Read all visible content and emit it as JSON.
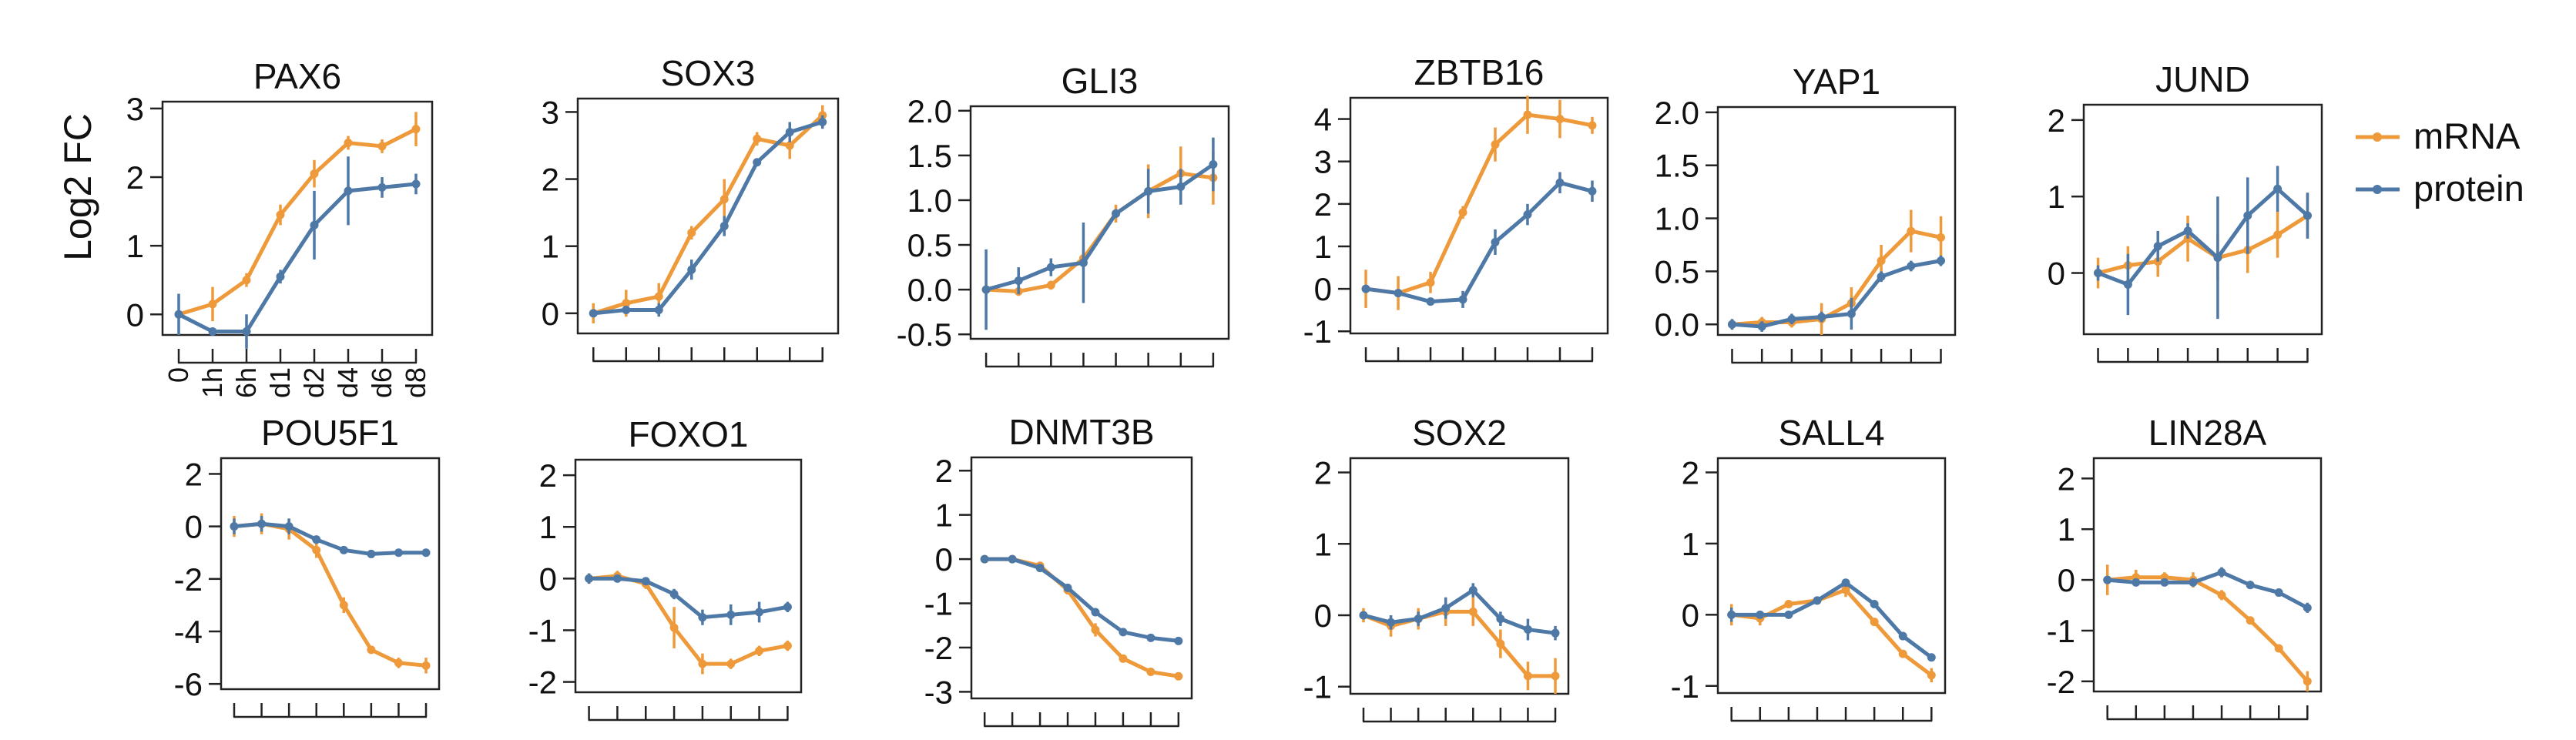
{
  "figure": {
    "ylabel": "Log2 FC",
    "legend": [
      {
        "name": "mRNA",
        "color": "#EE9A3A"
      },
      {
        "name": "protein",
        "color": "#4E79A7"
      }
    ],
    "x_ticks": [
      "0",
      "1h",
      "6h",
      "d1",
      "d2",
      "d4",
      "d6",
      "d8"
    ]
  },
  "chart_data": [
    {
      "type": "line",
      "title": "PAX6",
      "ylim": [
        -0.3,
        3.1
      ],
      "yticks": [
        "0",
        "1",
        "2",
        "3"
      ],
      "categories": [
        "0",
        "1h",
        "6h",
        "d1",
        "d2",
        "d4",
        "d6",
        "d8"
      ],
      "series": [
        {
          "name": "mRNA",
          "values": [
            0,
            0.15,
            0.5,
            1.45,
            2.05,
            2.5,
            2.45,
            2.7
          ],
          "err": [
            0.05,
            0.25,
            0.1,
            0.15,
            0.2,
            0.1,
            0.1,
            0.25
          ]
        },
        {
          "name": "protein",
          "values": [
            0,
            -0.25,
            -0.25,
            0.55,
            1.3,
            1.8,
            1.85,
            1.9
          ],
          "err": [
            0.3,
            0.05,
            0.25,
            0.1,
            0.5,
            0.5,
            0.15,
            0.15
          ]
        }
      ]
    },
    {
      "type": "line",
      "title": "SOX3",
      "ylim": [
        -0.3,
        3.2
      ],
      "yticks": [
        "0",
        "1",
        "2",
        "3"
      ],
      "categories": [
        "0",
        "1h",
        "6h",
        "d1",
        "d2",
        "d4",
        "d6",
        "d8"
      ],
      "series": [
        {
          "name": "mRNA",
          "values": [
            0,
            0.15,
            0.25,
            1.2,
            1.7,
            2.6,
            2.5,
            2.95
          ],
          "err": [
            0.15,
            0.2,
            0.2,
            0.1,
            0.3,
            0.1,
            0.2,
            0.15
          ]
        },
        {
          "name": "protein",
          "values": [
            0,
            0.05,
            0.05,
            0.65,
            1.3,
            2.25,
            2.7,
            2.85
          ],
          "err": [
            0.05,
            0.05,
            0.1,
            0.15,
            0.15,
            0.05,
            0.15,
            0.1
          ]
        }
      ]
    },
    {
      "type": "line",
      "title": "GLI3",
      "ylim": [
        -0.55,
        2.05
      ],
      "yticks": [
        "-0.5",
        "0.0",
        "0.5",
        "1.0",
        "1.5",
        "2.0"
      ],
      "categories": [
        "0",
        "1h",
        "6h",
        "d1",
        "d2",
        "d4",
        "d6",
        "d8"
      ],
      "series": [
        {
          "name": "mRNA",
          "values": [
            0,
            -0.02,
            0.05,
            0.35,
            0.85,
            1.1,
            1.3,
            1.25
          ],
          "err": [
            0.05,
            0.05,
            0.05,
            0.1,
            0.1,
            0.3,
            0.3,
            0.3
          ]
        },
        {
          "name": "protein",
          "values": [
            0,
            0.1,
            0.25,
            0.3,
            0.85,
            1.1,
            1.15,
            1.4
          ],
          "err": [
            0.45,
            0.15,
            0.1,
            0.45,
            0.05,
            0.25,
            0.2,
            0.3
          ]
        }
      ]
    },
    {
      "type": "line",
      "title": "ZBTB16",
      "ylim": [
        -1.05,
        4.5
      ],
      "yticks": [
        "-1",
        "0",
        "1",
        "2",
        "3",
        "4"
      ],
      "categories": [
        "0",
        "1h",
        "6h",
        "d1",
        "d2",
        "d4",
        "d6",
        "d8"
      ],
      "series": [
        {
          "name": "mRNA",
          "values": [
            0,
            -0.1,
            0.15,
            1.8,
            3.4,
            4.1,
            4.0,
            3.85
          ],
          "err": [
            0.45,
            0.4,
            0.25,
            0.15,
            0.4,
            0.45,
            0.45,
            0.2
          ]
        },
        {
          "name": "protein",
          "values": [
            0,
            -0.1,
            -0.3,
            -0.25,
            1.1,
            1.75,
            2.5,
            2.3
          ],
          "err": [
            0.05,
            0.05,
            0.05,
            0.2,
            0.3,
            0.25,
            0.25,
            0.25
          ]
        }
      ]
    },
    {
      "type": "line",
      "title": "YAP1",
      "ylim": [
        -0.1,
        2.05
      ],
      "yticks": [
        "0.0",
        "0.5",
        "1.0",
        "1.5",
        "2.0"
      ],
      "categories": [
        "0",
        "1h",
        "6h",
        "d1",
        "d2",
        "d4",
        "d6",
        "d8"
      ],
      "series": [
        {
          "name": "mRNA",
          "values": [
            0,
            0.02,
            0.02,
            0.05,
            0.2,
            0.6,
            0.88,
            0.82
          ],
          "err": [
            0.05,
            0.05,
            0.05,
            0.15,
            0.15,
            0.15,
            0.2,
            0.2
          ]
        },
        {
          "name": "protein",
          "values": [
            0,
            -0.02,
            0.05,
            0.07,
            0.1,
            0.45,
            0.55,
            0.6
          ],
          "err": [
            0.05,
            0.05,
            0.05,
            0.05,
            0.15,
            0.05,
            0.05,
            0.05
          ]
        }
      ]
    },
    {
      "type": "line",
      "title": "JUND",
      "ylim": [
        -0.8,
        2.2
      ],
      "yticks": [
        "0",
        "1",
        "2"
      ],
      "categories": [
        "0",
        "1h",
        "6h",
        "d1",
        "d2",
        "d4",
        "d6",
        "d8"
      ],
      "series": [
        {
          "name": "mRNA",
          "values": [
            0,
            0.1,
            0.15,
            0.45,
            0.2,
            0.3,
            0.5,
            0.75
          ],
          "err": [
            0.2,
            0.25,
            0.2,
            0.3,
            0.3,
            0.3,
            0.3,
            0.3
          ]
        },
        {
          "name": "protein",
          "values": [
            0,
            -0.15,
            0.35,
            0.55,
            0.2,
            0.75,
            1.1,
            0.75
          ],
          "err": [
            0.1,
            0.4,
            0.2,
            0.1,
            0.8,
            0.5,
            0.3,
            0.3
          ]
        }
      ]
    },
    {
      "type": "line",
      "title": "POU5F1",
      "ylim": [
        -6.2,
        2.6
      ],
      "yticks": [
        "-6",
        "-4",
        "-2",
        "0",
        "2"
      ],
      "categories": [
        "0",
        "1h",
        "6h",
        "d1",
        "d2",
        "d4",
        "d6",
        "d8"
      ],
      "series": [
        {
          "name": "mRNA",
          "values": [
            0,
            0.1,
            -0.1,
            -0.9,
            -3.0,
            -4.7,
            -5.2,
            -5.3
          ],
          "err": [
            0.4,
            0.4,
            0.4,
            0.3,
            0.3,
            0.05,
            0.2,
            0.3
          ]
        },
        {
          "name": "protein",
          "values": [
            0,
            0.1,
            0.0,
            -0.5,
            -0.9,
            -1.05,
            -1.0,
            -1.0
          ],
          "err": [
            0.3,
            0.3,
            0.3,
            0.1,
            0.1,
            0.1,
            0.1,
            0.1
          ]
        }
      ]
    },
    {
      "type": "line",
      "title": "FOXO1",
      "ylim": [
        -2.2,
        2.3
      ],
      "yticks": [
        "-2",
        "-1",
        "0",
        "1",
        "2"
      ],
      "categories": [
        "0",
        "1h",
        "6h",
        "d1",
        "d2",
        "d4",
        "d6",
        "d8"
      ],
      "series": [
        {
          "name": "mRNA",
          "values": [
            0,
            0.05,
            -0.1,
            -0.95,
            -1.65,
            -1.65,
            -1.4,
            -1.3
          ],
          "err": [
            0.1,
            0.1,
            0.1,
            0.4,
            0.2,
            0.1,
            0.1,
            0.1
          ]
        },
        {
          "name": "protein",
          "values": [
            0,
            0.0,
            -0.05,
            -0.3,
            -0.75,
            -0.7,
            -0.65,
            -0.55
          ],
          "err": [
            0.1,
            0.05,
            0.05,
            0.1,
            0.15,
            0.2,
            0.2,
            0.1
          ]
        }
      ]
    },
    {
      "type": "line",
      "title": "DNMT3B",
      "ylim": [
        -3.15,
        2.3
      ],
      "yticks": [
        "-3",
        "-2",
        "-1",
        "0",
        "1",
        "2"
      ],
      "categories": [
        "0",
        "1h",
        "6h",
        "d1",
        "d2",
        "d4",
        "d6",
        "d8"
      ],
      "series": [
        {
          "name": "mRNA",
          "values": [
            0,
            0,
            -0.15,
            -0.7,
            -1.6,
            -2.25,
            -2.55,
            -2.65
          ],
          "err": [
            0.05,
            0.05,
            0.05,
            0.1,
            0.15,
            0.05,
            0.05,
            0.05
          ]
        },
        {
          "name": "protein",
          "values": [
            0,
            0,
            -0.2,
            -0.65,
            -1.2,
            -1.65,
            -1.78,
            -1.85
          ],
          "err": [
            0.05,
            0.05,
            0.05,
            0.05,
            0.05,
            0.05,
            0.05,
            0.05
          ]
        }
      ]
    },
    {
      "type": "line",
      "title": "SOX2",
      "ylim": [
        -1.1,
        2.2
      ],
      "yticks": [
        "-1",
        "0",
        "1",
        "2"
      ],
      "categories": [
        "0",
        "1h",
        "6h",
        "d1",
        "d2",
        "d4",
        "d6",
        "d8"
      ],
      "series": [
        {
          "name": "mRNA",
          "values": [
            0,
            -0.15,
            -0.05,
            0.05,
            0.05,
            -0.4,
            -0.85,
            -0.85
          ],
          "err": [
            0.1,
            0.15,
            0.15,
            0.2,
            0.2,
            0.2,
            0.2,
            0.25
          ]
        },
        {
          "name": "protein",
          "values": [
            0,
            -0.1,
            -0.05,
            0.1,
            0.35,
            -0.05,
            -0.2,
            -0.25
          ],
          "err": [
            0.05,
            0.1,
            0.1,
            0.15,
            0.1,
            0.1,
            0.15,
            0.1
          ]
        }
      ]
    },
    {
      "type": "line",
      "title": "SALL4",
      "ylim": [
        -1.1,
        2.2
      ],
      "yticks": [
        "-1",
        "0",
        "1",
        "2"
      ],
      "categories": [
        "0",
        "1h",
        "6h",
        "d1",
        "d2",
        "d4",
        "d6",
        "d8"
      ],
      "series": [
        {
          "name": "mRNA",
          "values": [
            0,
            -0.05,
            0.15,
            0.2,
            0.35,
            -0.1,
            -0.55,
            -0.85
          ],
          "err": [
            0.15,
            0.1,
            0.05,
            0.05,
            0.1,
            0.05,
            0.05,
            0.1
          ]
        },
        {
          "name": "protein",
          "values": [
            0,
            0.0,
            0.0,
            0.2,
            0.45,
            0.15,
            -0.3,
            -0.6
          ],
          "err": [
            0.1,
            0.05,
            0.05,
            0.05,
            0.05,
            0.05,
            0.05,
            0.05
          ]
        }
      ]
    },
    {
      "type": "line",
      "title": "LIN28A",
      "ylim": [
        -2.2,
        2.4
      ],
      "yticks": [
        "-2",
        "-1",
        "0",
        "1",
        "2"
      ],
      "categories": [
        "0",
        "1h",
        "6h",
        "d1",
        "d2",
        "d4",
        "d6",
        "d8"
      ],
      "series": [
        {
          "name": "mRNA",
          "values": [
            0,
            0.05,
            0.05,
            0.0,
            -0.3,
            -0.8,
            -1.35,
            -2.0
          ],
          "err": [
            0.3,
            0.15,
            0.1,
            0.15,
            0.1,
            0.05,
            0.05,
            0.2
          ]
        },
        {
          "name": "protein",
          "values": [
            0,
            -0.05,
            -0.05,
            -0.05,
            0.15,
            -0.1,
            -0.25,
            -0.55
          ],
          "err": [
            0.05,
            0.05,
            0.05,
            0.05,
            0.1,
            0.05,
            0.05,
            0.1
          ]
        }
      ]
    }
  ]
}
